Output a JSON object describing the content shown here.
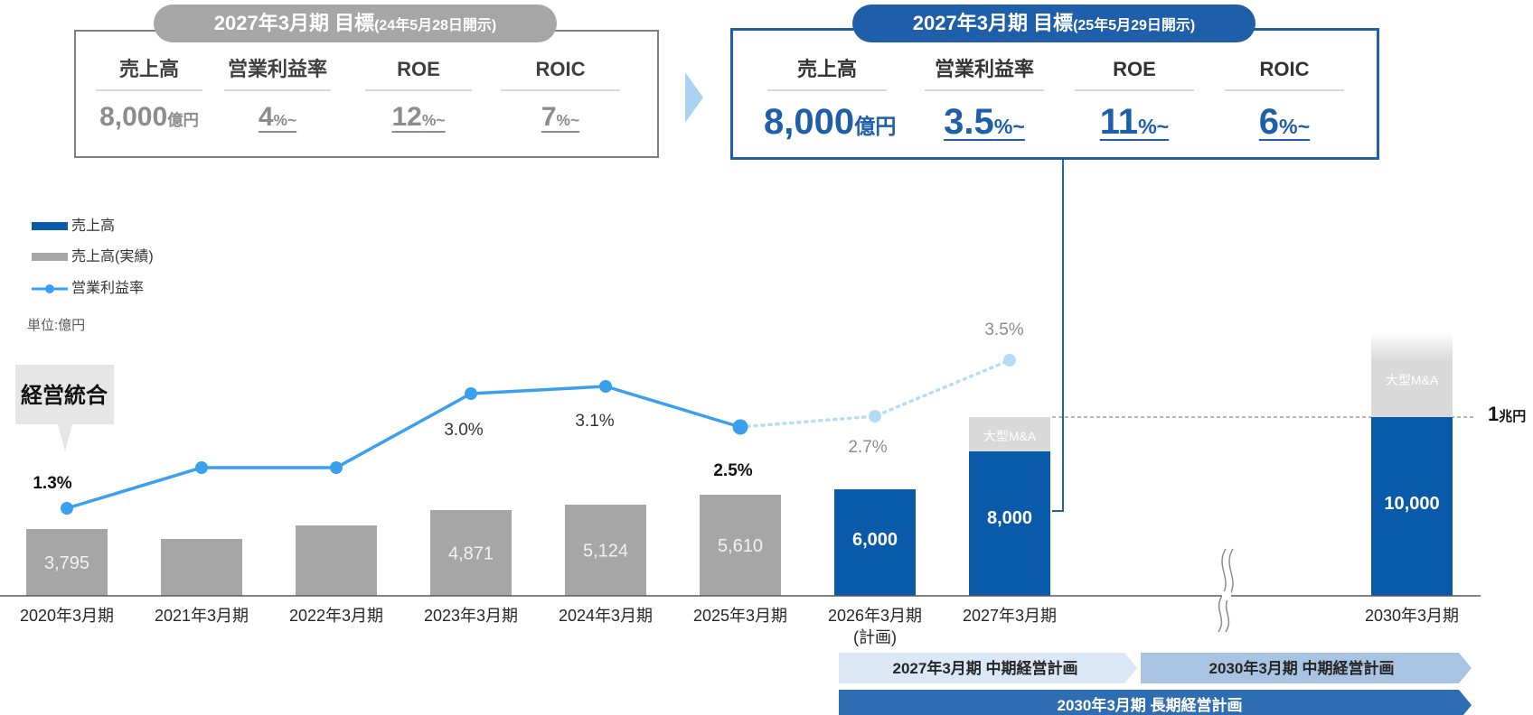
{
  "targets": {
    "old": {
      "title": "2027年3月期 目標",
      "title_note": "(24年5月28日開示)",
      "items": [
        {
          "label": "売上高",
          "value": "8,000",
          "unit": "億円"
        },
        {
          "label": "営業利益率",
          "value": "4",
          "unit": "%~"
        },
        {
          "label": "ROE",
          "value": "12",
          "unit": "%~"
        },
        {
          "label": "ROIC",
          "value": "7",
          "unit": "%~"
        }
      ]
    },
    "new": {
      "title": "2027年3月期 目標",
      "title_note": "(25年5月29日開示)",
      "items": [
        {
          "label": "売上高",
          "value": "8,000",
          "unit": "億円"
        },
        {
          "label": "営業利益率",
          "value": "3.5",
          "unit": "%~"
        },
        {
          "label": "ROE",
          "value": "11",
          "unit": "%~"
        },
        {
          "label": "ROIC",
          "value": "6",
          "unit": "%~"
        }
      ]
    }
  },
  "legend": {
    "sales": "売上高",
    "sales_actual": "売上高(実績)",
    "op_margin": "営業利益率"
  },
  "unit_label": "単位:億円",
  "callout": "経営統合",
  "ma_label": "大型M&A",
  "trillion": {
    "value": "1",
    "unit": "兆円"
  },
  "colors": {
    "actual": "#a6a6a6",
    "plan": "#0a5aaa",
    "line": "#3aa0ee",
    "line_forecast": "#b6dbf6",
    "ma": "#d9d9d9"
  },
  "plans": {
    "mid_2027": "2027年3月期 中期経営計画",
    "mid_2030": "2030年3月期 中期経営計画",
    "long_2030": "2030年3月期 長期経営計画"
  },
  "chart_data": {
    "type": "bar",
    "categories": [
      "2020年3月期",
      "2021年3月期",
      "2022年3月期",
      "2023年3月期",
      "2024年3月期",
      "2025年3月期",
      "2026年3月期",
      "2027年3月期",
      "2030年3月期"
    ],
    "category_notes": [
      "",
      "",
      "",
      "",
      "",
      "",
      "(計画)",
      "",
      ""
    ],
    "series": [
      {
        "name": "売上高(実績)",
        "values": [
          3795,
          3500,
          3900,
          4871,
          5124,
          5610,
          null,
          null,
          null
        ],
        "labels": [
          "3,795",
          "",
          "",
          "4,871",
          "5,124",
          "5,610",
          "",
          "",
          ""
        ]
      },
      {
        "name": "売上高",
        "values": [
          null,
          null,
          null,
          null,
          null,
          null,
          6000,
          8000,
          10000
        ],
        "labels": [
          "",
          "",
          "",
          "",
          "",
          "",
          "6,000",
          "8,000",
          "10,000"
        ]
      },
      {
        "name": "営業利益率",
        "values": [
          1.3,
          2.1,
          2.1,
          3.0,
          3.1,
          2.5,
          2.7,
          3.5,
          null
        ],
        "labels": [
          "1.3%",
          "",
          "",
          "3.0%",
          "3.1%",
          "2.5%",
          "2.7%",
          "3.5%",
          ""
        ]
      }
    ],
    "ma_extensions": [
      null,
      null,
      null,
      null,
      null,
      null,
      null,
      1000,
      2300
    ]
  }
}
